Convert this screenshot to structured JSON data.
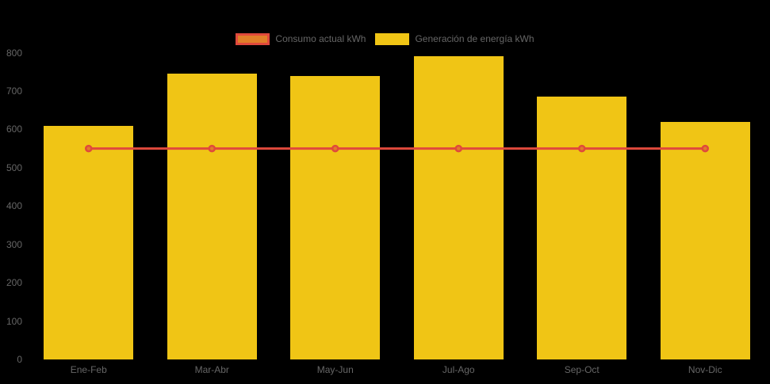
{
  "chart": {
    "background": "#000000",
    "axis_text_color": "#666666",
    "legend": {
      "position": "top",
      "items": [
        {
          "label": "Consumo actual kWh",
          "swatch_fill": "#e07e29",
          "swatch_border": "#e0493c"
        },
        {
          "label": "Generación de energía kWh",
          "swatch_fill": "#f0c515",
          "swatch_border": "#f0c515"
        }
      ]
    }
  },
  "chart_data": {
    "type": "bar",
    "title": "",
    "xlabel": "",
    "ylabel": "",
    "categories": [
      "Ene-Feb",
      "Mar-Abr",
      "May-Jun",
      "Jul-Ago",
      "Sep-Oct",
      "Nov-Dic"
    ],
    "series": [
      {
        "name": "Consumo actual kWh",
        "type": "line",
        "values": [
          550,
          550,
          550,
          550,
          550,
          550
        ],
        "color": "#e0493c",
        "point_fill": "#e07e29"
      },
      {
        "name": "Generación de energía kWh",
        "type": "bar",
        "values": [
          610,
          745,
          740,
          790,
          685,
          620
        ],
        "color": "#f0c515"
      }
    ],
    "ylim": [
      0,
      800
    ],
    "ytick_step": 100,
    "yticks": [
      "800",
      "700",
      "600",
      "500",
      "400",
      "300",
      "200",
      "100",
      "0"
    ],
    "grid": false,
    "legend_position": "top"
  }
}
